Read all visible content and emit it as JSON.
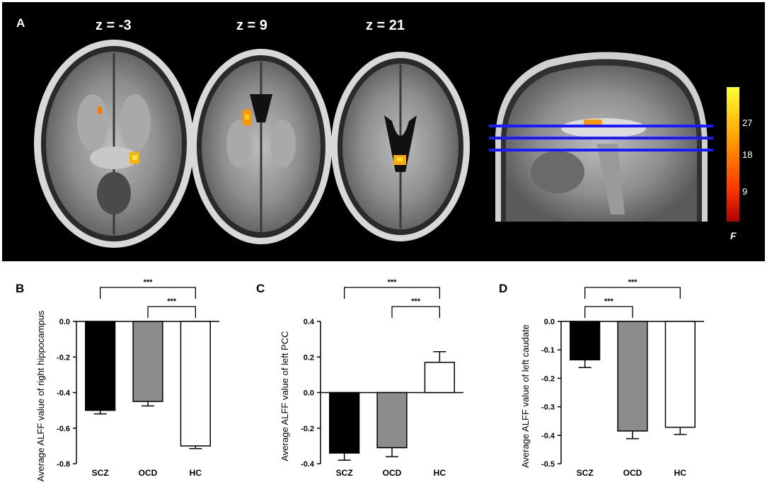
{
  "panel_a": {
    "label": "A",
    "slice_labels": [
      "z = -3",
      "z = 9",
      "z = 21"
    ],
    "colorbar": {
      "ticks": [
        "27",
        "18",
        "9"
      ],
      "stat_label": "F",
      "colors": [
        "#ffff30",
        "#ff9a00",
        "#ff3a00",
        "#b00000"
      ]
    },
    "reference_line_color": "#1a1aff"
  },
  "chart_data": [
    {
      "panel": "B",
      "type": "bar",
      "categories": [
        "SCZ",
        "OCD",
        "HC"
      ],
      "values": [
        -0.5,
        -0.45,
        -0.7
      ],
      "errors": [
        0.02,
        0.025,
        0.015
      ],
      "ylabel": "Average ALFF value of right hippocampus",
      "ylim": [
        -0.8,
        0.0
      ],
      "yticks": [
        "0.0",
        "-0.2",
        "-0.4",
        "-0.6",
        "-0.8"
      ],
      "bar_colors": [
        "#000000",
        "#8c8c8c",
        "#ffffff"
      ],
      "significance": [
        {
          "from": 0,
          "to": 2,
          "label": "***"
        },
        {
          "from": 1,
          "to": 2,
          "label": "***"
        }
      ]
    },
    {
      "panel": "C",
      "type": "bar",
      "categories": [
        "SCZ",
        "OCD",
        "HC"
      ],
      "values": [
        -0.34,
        -0.31,
        0.17
      ],
      "errors": [
        0.04,
        0.05,
        0.06
      ],
      "ylabel": "Average ALFF value of left PCC",
      "ylim": [
        -0.4,
        0.4
      ],
      "yticks": [
        "0.4",
        "0.2",
        "0.0",
        "-0.2",
        "-0.4"
      ],
      "bar_colors": [
        "#000000",
        "#8c8c8c",
        "#ffffff"
      ],
      "significance": [
        {
          "from": 0,
          "to": 2,
          "label": "***"
        },
        {
          "from": 1,
          "to": 2,
          "label": "***"
        }
      ]
    },
    {
      "panel": "D",
      "type": "bar",
      "categories": [
        "SCZ",
        "OCD",
        "HC"
      ],
      "values": [
        -0.135,
        -0.385,
        -0.372
      ],
      "errors": [
        0.027,
        0.027,
        0.025
      ],
      "ylabel": "Average ALFF value of left caudate",
      "ylim": [
        -0.5,
        0.0
      ],
      "yticks": [
        "0.0",
        "-0.1",
        "-0.2",
        "-0.3",
        "-0.4",
        "-0.5"
      ],
      "bar_colors": [
        "#000000",
        "#8c8c8c",
        "#ffffff"
      ],
      "significance": [
        {
          "from": 0,
          "to": 2,
          "label": "***"
        },
        {
          "from": 0,
          "to": 1,
          "label": "***"
        }
      ]
    }
  ]
}
